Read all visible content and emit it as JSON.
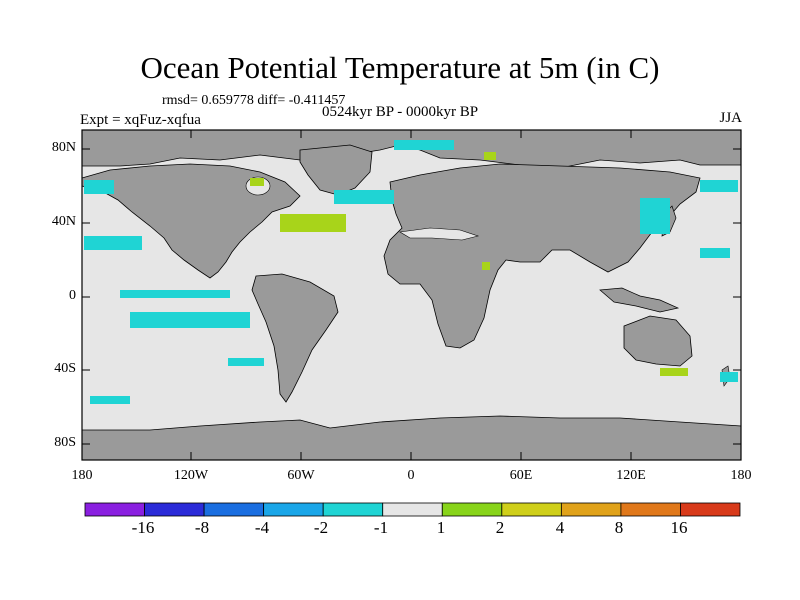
{
  "title": "Ocean Potential Temperature at 5m (in C)",
  "stats": "rmsd= 0.659778 diff= -0.411457",
  "left_label": "Expt = xqFuz-xqfua",
  "center_label": "0524kyr BP - 0000kyr BP",
  "right_label": "JJA",
  "y_ticks": [
    "80N",
    "40N",
    "0",
    "40S",
    "80S"
  ],
  "x_ticks": [
    "180",
    "120W",
    "60W",
    "0",
    "60E",
    "120E",
    "180"
  ],
  "colorbar": {
    "labels": [
      "-16",
      "-8",
      "-4",
      "-2",
      "-1",
      "1",
      "2",
      "4",
      "8",
      "16"
    ],
    "colors": [
      "#8a1fe0",
      "#2b2bd8",
      "#1a6ee0",
      "#1aa6e8",
      "#1fd4d4",
      "#e6e6e6",
      "#88d41a",
      "#cfcf1a",
      "#e0a21a",
      "#e0781a",
      "#d83a1a"
    ]
  },
  "map_colors": {
    "ocean": "#e6e6e6",
    "land": "#9a9a9a",
    "cold_anomaly": "#1fd4d4",
    "warm_anomaly": "#a8d41a"
  }
}
